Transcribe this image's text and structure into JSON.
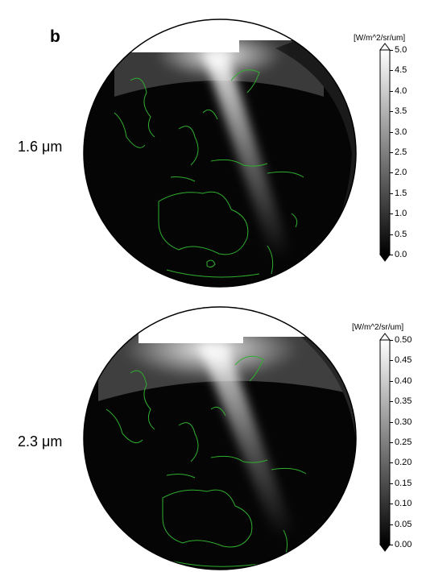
{
  "panel_letter": "b",
  "panels": [
    {
      "band_label": "1.6 μm",
      "unit_label": "[W/m^2/sr/um]",
      "ticks": [
        "5.0",
        "4.5",
        "4.0",
        "3.5",
        "3.0",
        "2.5",
        "2.0",
        "1.5",
        "1.0",
        "0.5",
        "0.0"
      ]
    },
    {
      "band_label": "2.3 μm",
      "unit_label": "[W/m^2/sr/um]",
      "ticks": [
        "0.50",
        "0.45",
        "0.40",
        "0.35",
        "0.30",
        "0.25",
        "0.20",
        "0.15",
        "0.10",
        "0.05",
        "0.00"
      ]
    }
  ],
  "colors": {
    "coastline": "#2fae2f",
    "map_background": "#000000",
    "colorbar_high": "#ffffff",
    "colorbar_low": "#000000"
  }
}
